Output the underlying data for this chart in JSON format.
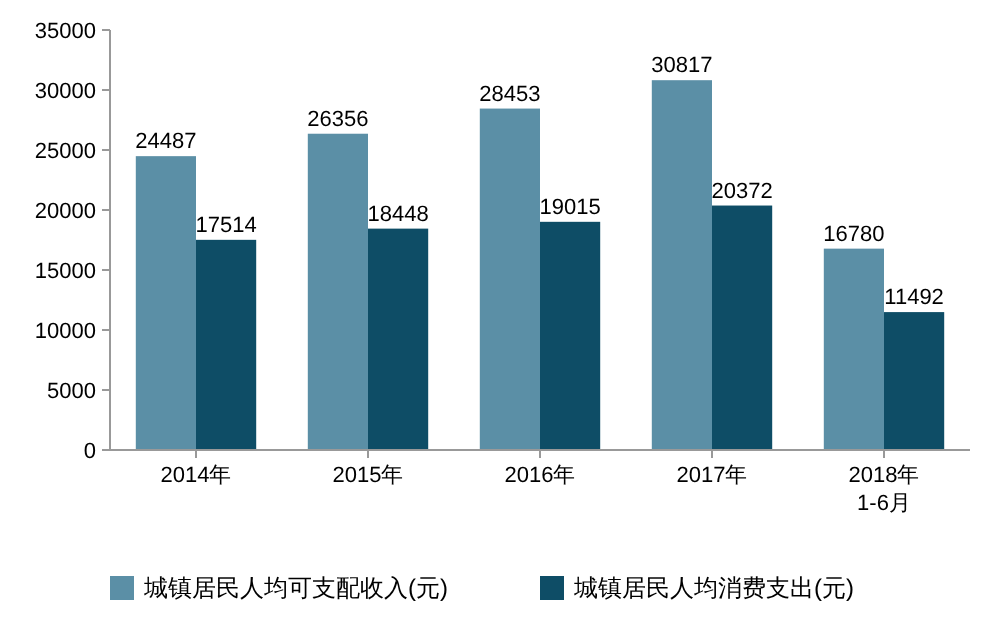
{
  "chart_data": {
    "type": "bar",
    "categories": [
      "2014年",
      "2015年",
      "2016年",
      "2017年",
      "2018年\n1-6月"
    ],
    "series": [
      {
        "name": "城镇居民人均可支配收入(元)",
        "color": "#5b8fa6",
        "values": [
          24487,
          26356,
          28453,
          30817,
          16780
        ]
      },
      {
        "name": "城镇居民人均消费支出(元)",
        "color": "#0e4d66",
        "values": [
          17514,
          18448,
          19015,
          20372,
          11492
        ]
      }
    ],
    "ylim": [
      0,
      35000
    ],
    "yticks": [
      0,
      5000,
      10000,
      15000,
      20000,
      25000,
      30000,
      35000
    ],
    "data_labels": true,
    "legend": "bottom"
  }
}
